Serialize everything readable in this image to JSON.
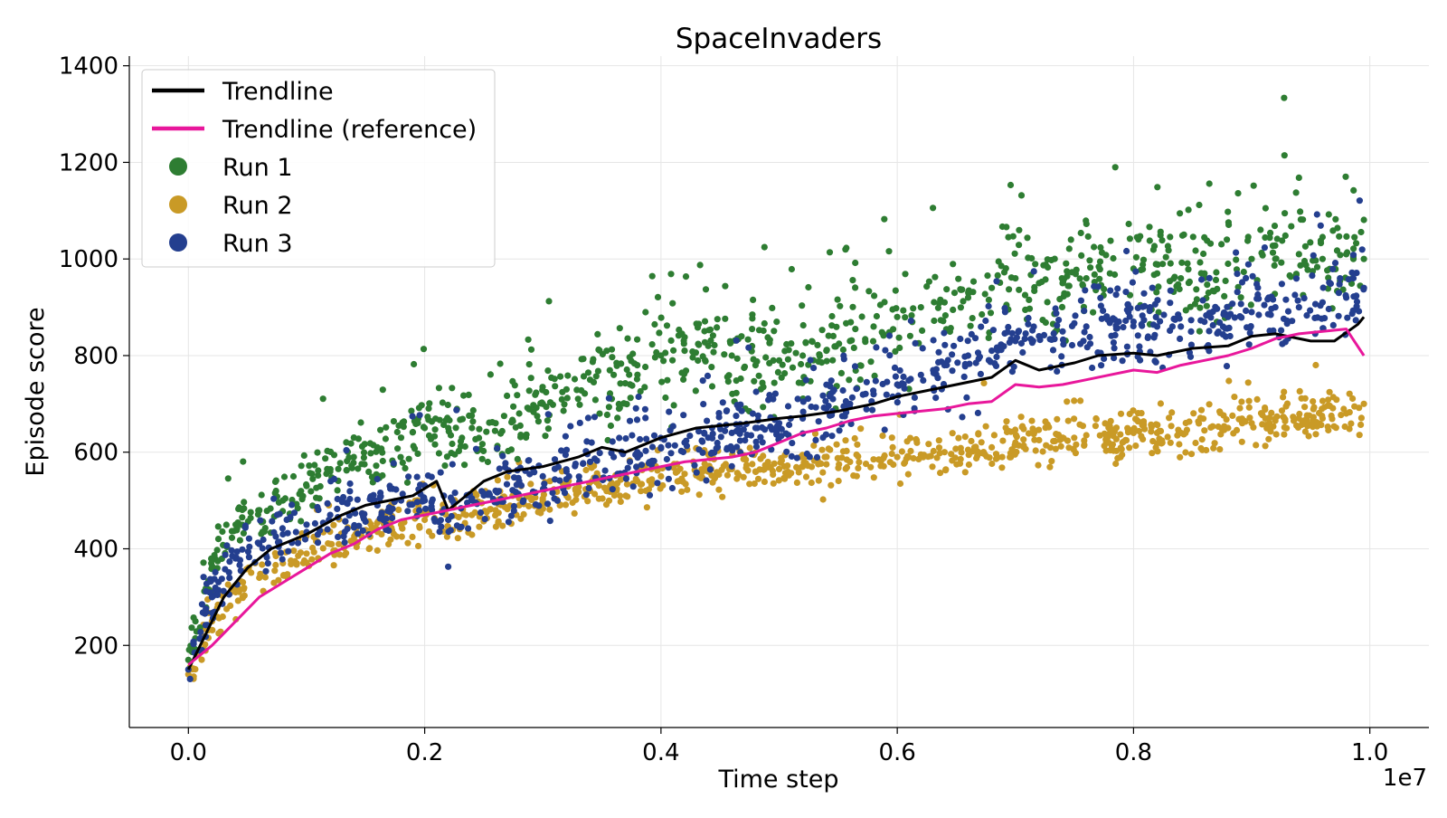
{
  "chart_data": {
    "type": "scatter",
    "title": "SpaceInvaders",
    "xlabel": "Time step",
    "ylabel": "Episode score",
    "x_offset_label": "1e7",
    "xlim": [
      -0.05,
      1.05
    ],
    "ylim": [
      30,
      1420
    ],
    "x_ticks": [
      0.0,
      0.2,
      0.4,
      0.6,
      0.8,
      1.0
    ],
    "x_tick_labels": [
      "0.0",
      "0.2",
      "0.4",
      "0.6",
      "0.8",
      "1.0"
    ],
    "y_ticks": [
      200,
      400,
      600,
      800,
      1000,
      1200,
      1400
    ],
    "y_tick_labels": [
      "200",
      "400",
      "600",
      "800",
      "1000",
      "1200",
      "1400"
    ],
    "grid": true,
    "legend_position": "top-left",
    "legend": [
      {
        "label": "Trendline",
        "kind": "line",
        "color": "#000000"
      },
      {
        "label": "Trendline (reference)",
        "kind": "line",
        "color": "#e8179b"
      },
      {
        "label": "Run 1",
        "kind": "marker",
        "color": "#2e7d32"
      },
      {
        "label": "Run 2",
        "kind": "marker",
        "color": "#c99a26"
      },
      {
        "label": "Run 3",
        "kind": "marker",
        "color": "#243f8f"
      }
    ],
    "scatter_series": [
      {
        "name": "Run 1",
        "color": "#2e7d32",
        "x": [
          0.0,
          0.02,
          0.04,
          0.06,
          0.08,
          0.1,
          0.12,
          0.14,
          0.16,
          0.18,
          0.2,
          0.22,
          0.24,
          0.26,
          0.28,
          0.3,
          0.32,
          0.34,
          0.36,
          0.38,
          0.4,
          0.42,
          0.44,
          0.46,
          0.48,
          0.5,
          0.52,
          0.54,
          0.56,
          0.58,
          0.6,
          0.62,
          0.64,
          0.66,
          0.68,
          0.7,
          0.72,
          0.74,
          0.76,
          0.78,
          0.8,
          0.82,
          0.84,
          0.86,
          0.88,
          0.9,
          0.92,
          0.94,
          0.96,
          0.98,
          0.995
        ],
        "y": [
          170,
          360,
          450,
          480,
          500,
          530,
          560,
          590,
          610,
          630,
          650,
          650,
          650,
          660,
          680,
          700,
          730,
          750,
          760,
          780,
          800,
          810,
          820,
          800,
          780,
          790,
          800,
          810,
          830,
          860,
          880,
          900,
          910,
          920,
          940,
          960,
          950,
          950,
          960,
          970,
          980,
          970,
          960,
          970,
          990,
          1000,
          1000,
          1010,
          1000,
          1010,
          1000
        ],
        "spread": [
          25,
          50,
          55,
          55,
          55,
          60,
          60,
          60,
          65,
          65,
          70,
          75,
          75,
          75,
          80,
          80,
          80,
          80,
          85,
          85,
          85,
          90,
          90,
          90,
          90,
          90,
          90,
          90,
          95,
          95,
          95,
          95,
          100,
          100,
          105,
          110,
          105,
          100,
          100,
          100,
          100,
          100,
          100,
          105,
          110,
          110,
          110,
          110,
          110,
          110,
          105
        ]
      },
      {
        "name": "Run 2",
        "color": "#c99a26",
        "x": [
          0.0,
          0.02,
          0.04,
          0.06,
          0.08,
          0.1,
          0.12,
          0.14,
          0.16,
          0.18,
          0.2,
          0.22,
          0.24,
          0.26,
          0.28,
          0.3,
          0.32,
          0.34,
          0.36,
          0.38,
          0.4,
          0.42,
          0.44,
          0.46,
          0.48,
          0.5,
          0.52,
          0.54,
          0.56,
          0.58,
          0.6,
          0.62,
          0.64,
          0.66,
          0.68,
          0.7,
          0.72,
          0.74,
          0.76,
          0.78,
          0.8,
          0.82,
          0.84,
          0.86,
          0.88,
          0.9,
          0.92,
          0.94,
          0.96,
          0.98,
          0.995
        ],
        "y": [
          140,
          250,
          310,
          340,
          370,
          390,
          410,
          420,
          440,
          450,
          460,
          460,
          470,
          480,
          490,
          500,
          510,
          520,
          530,
          540,
          550,
          555,
          560,
          565,
          560,
          565,
          570,
          575,
          580,
          585,
          590,
          595,
          600,
          605,
          610,
          620,
          625,
          630,
          635,
          640,
          640,
          640,
          640,
          645,
          650,
          660,
          665,
          670,
          670,
          680,
          700
        ],
        "spread": [
          25,
          40,
          40,
          40,
          40,
          40,
          40,
          40,
          40,
          40,
          40,
          40,
          40,
          40,
          40,
          40,
          40,
          40,
          40,
          40,
          40,
          40,
          40,
          40,
          40,
          40,
          40,
          45,
          45,
          45,
          45,
          45,
          45,
          45,
          45,
          45,
          45,
          45,
          45,
          45,
          45,
          45,
          45,
          45,
          45,
          45,
          45,
          45,
          45,
          45,
          45
        ]
      },
      {
        "name": "Run 3",
        "color": "#243f8f",
        "x": [
          0.0,
          0.02,
          0.04,
          0.06,
          0.08,
          0.1,
          0.12,
          0.14,
          0.16,
          0.18,
          0.2,
          0.22,
          0.24,
          0.26,
          0.28,
          0.3,
          0.32,
          0.34,
          0.36,
          0.38,
          0.4,
          0.42,
          0.44,
          0.46,
          0.48,
          0.5,
          0.52,
          0.54,
          0.56,
          0.58,
          0.6,
          0.62,
          0.64,
          0.66,
          0.68,
          0.7,
          0.72,
          0.74,
          0.76,
          0.78,
          0.8,
          0.82,
          0.84,
          0.86,
          0.88,
          0.9,
          0.92,
          0.94,
          0.96,
          0.98,
          0.995
        ],
        "y": [
          150,
          300,
          380,
          410,
          430,
          450,
          470,
          480,
          490,
          500,
          500,
          460,
          500,
          520,
          540,
          550,
          560,
          580,
          590,
          600,
          610,
          620,
          630,
          640,
          650,
          660,
          670,
          690,
          700,
          720,
          740,
          760,
          780,
          800,
          810,
          830,
          840,
          850,
          860,
          870,
          870,
          860,
          860,
          870,
          880,
          890,
          900,
          900,
          910,
          920,
          940
        ],
        "spread": [
          25,
          50,
          55,
          55,
          60,
          60,
          60,
          60,
          65,
          65,
          65,
          70,
          70,
          70,
          70,
          70,
          70,
          75,
          75,
          75,
          75,
          75,
          75,
          75,
          75,
          75,
          75,
          80,
          80,
          80,
          80,
          80,
          80,
          80,
          80,
          80,
          80,
          80,
          80,
          80,
          80,
          80,
          80,
          75,
          75,
          75,
          75,
          75,
          75,
          75,
          70
        ]
      }
    ],
    "series": [
      {
        "name": "Trendline",
        "color": "#000000",
        "x": [
          0.0,
          0.01,
          0.02,
          0.03,
          0.05,
          0.07,
          0.1,
          0.13,
          0.15,
          0.17,
          0.19,
          0.21,
          0.22,
          0.23,
          0.25,
          0.27,
          0.3,
          0.33,
          0.35,
          0.37,
          0.4,
          0.43,
          0.45,
          0.47,
          0.5,
          0.52,
          0.55,
          0.58,
          0.6,
          0.62,
          0.65,
          0.68,
          0.7,
          0.72,
          0.75,
          0.77,
          0.8,
          0.82,
          0.85,
          0.88,
          0.9,
          0.92,
          0.95,
          0.97,
          0.99,
          0.995
        ],
        "y": [
          150,
          200,
          250,
          300,
          360,
          400,
          430,
          470,
          490,
          500,
          510,
          540,
          480,
          500,
          540,
          560,
          570,
          590,
          610,
          600,
          630,
          650,
          655,
          660,
          670,
          675,
          685,
          700,
          715,
          725,
          740,
          755,
          790,
          770,
          785,
          800,
          805,
          800,
          815,
          820,
          840,
          845,
          830,
          830,
          865,
          880
        ]
      },
      {
        "name": "Trendline (reference)",
        "color": "#e8179b",
        "x": [
          0.0,
          0.02,
          0.04,
          0.06,
          0.08,
          0.1,
          0.12,
          0.14,
          0.16,
          0.18,
          0.2,
          0.22,
          0.24,
          0.26,
          0.28,
          0.3,
          0.32,
          0.34,
          0.36,
          0.38,
          0.4,
          0.42,
          0.44,
          0.46,
          0.48,
          0.5,
          0.52,
          0.54,
          0.56,
          0.58,
          0.6,
          0.62,
          0.64,
          0.66,
          0.68,
          0.7,
          0.72,
          0.74,
          0.76,
          0.78,
          0.8,
          0.82,
          0.84,
          0.86,
          0.88,
          0.9,
          0.92,
          0.94,
          0.96,
          0.98,
          0.995
        ],
        "y": [
          160,
          200,
          250,
          300,
          330,
          360,
          390,
          410,
          440,
          460,
          470,
          480,
          490,
          500,
          510,
          520,
          530,
          540,
          550,
          560,
          570,
          580,
          585,
          590,
          600,
          620,
          640,
          650,
          665,
          675,
          680,
          685,
          690,
          700,
          705,
          740,
          735,
          740,
          750,
          760,
          770,
          765,
          780,
          790,
          800,
          815,
          835,
          845,
          850,
          855,
          800
        ]
      }
    ]
  }
}
